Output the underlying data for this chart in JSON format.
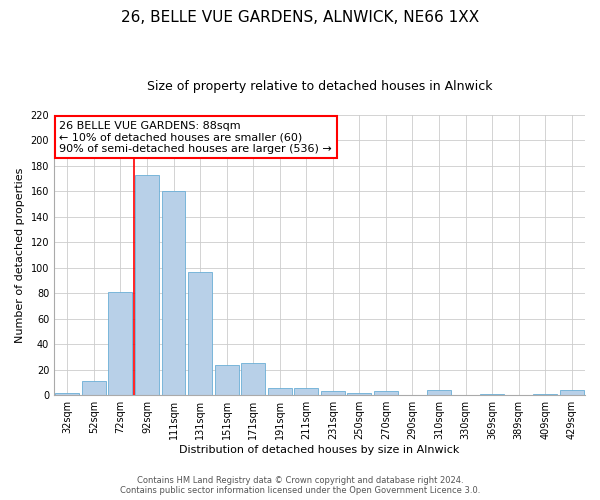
{
  "title": "26, BELLE VUE GARDENS, ALNWICK, NE66 1XX",
  "subtitle": "Size of property relative to detached houses in Alnwick",
  "xlabel": "Distribution of detached houses by size in Alnwick",
  "ylabel": "Number of detached properties",
  "bin_labels": [
    "32sqm",
    "52sqm",
    "72sqm",
    "92sqm",
    "111sqm",
    "131sqm",
    "151sqm",
    "171sqm",
    "191sqm",
    "211sqm",
    "231sqm",
    "250sqm",
    "270sqm",
    "290sqm",
    "310sqm",
    "330sqm",
    "369sqm",
    "389sqm",
    "409sqm",
    "429sqm"
  ],
  "bar_heights": [
    2,
    11,
    81,
    173,
    160,
    97,
    24,
    25,
    6,
    6,
    3,
    2,
    3,
    0,
    4,
    0,
    1,
    0,
    1,
    4
  ],
  "bar_color": "#b8d0e8",
  "bar_edge_color": "#6aaed6",
  "ylim": [
    0,
    220
  ],
  "yticks": [
    0,
    20,
    40,
    60,
    80,
    100,
    120,
    140,
    160,
    180,
    200,
    220
  ],
  "red_line_bin_index": 3,
  "annotation_title": "26 BELLE VUE GARDENS: 88sqm",
  "annotation_line1": "← 10% of detached houses are smaller (60)",
  "annotation_line2": "90% of semi-detached houses are larger (536) →",
  "footer1": "Contains HM Land Registry data © Crown copyright and database right 2024.",
  "footer2": "Contains public sector information licensed under the Open Government Licence 3.0.",
  "background_color": "#ffffff",
  "plot_background_color": "#ffffff",
  "grid_color": "#cccccc",
  "title_fontsize": 11,
  "subtitle_fontsize": 9,
  "axis_label_fontsize": 8,
  "tick_fontsize": 7,
  "annotation_fontsize": 8,
  "footer_fontsize": 6
}
